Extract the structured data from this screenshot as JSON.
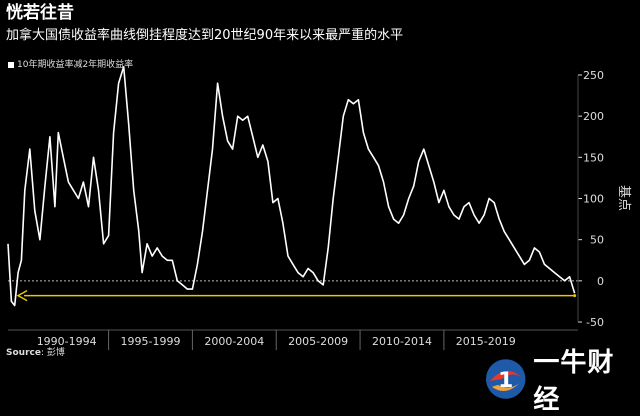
{
  "title": "恍若往昔",
  "subtitle": "加拿大国债收益率曲线倒挂程度达到20世纪90年来以来最严重的水平",
  "source_label": "Source",
  "source_value": ": 彭博",
  "watermark_text": "一牛财经",
  "colors": {
    "background": "#000000",
    "line": "#ffffff",
    "arrow": "#e8c800",
    "zero_line": "#bbbbbb",
    "axis_text": "#dddddd"
  },
  "chart_data": {
    "type": "line",
    "title": "恍若往昔",
    "ylabel": "基点",
    "ylim": [
      -50,
      250
    ],
    "yticks": [
      -50,
      0,
      50,
      100,
      150,
      200,
      250
    ],
    "xlim": [
      1989.0,
      2023.0
    ],
    "xtick_labels": [
      "1990-1994",
      "1995-1999",
      "2000-2004",
      "2005-2009",
      "2010-2014",
      "2015-2019"
    ],
    "xtick_centers": [
      1992.5,
      1997.5,
      2002.5,
      2007.5,
      2012.5,
      2017.5
    ],
    "xtick_dividers": [
      1995.0,
      2000.0,
      2005.0,
      2010.0,
      2015.0
    ],
    "series": [
      {
        "name": "10年期收益率减2年期收益率",
        "x": [
          1989.0,
          1989.2,
          1989.4,
          1989.6,
          1989.8,
          1990.0,
          1990.3,
          1990.6,
          1990.9,
          1991.2,
          1991.5,
          1991.8,
          1992.0,
          1992.3,
          1992.6,
          1992.9,
          1993.2,
          1993.5,
          1993.8,
          1994.1,
          1994.4,
          1994.7,
          1995.0,
          1995.3,
          1995.6,
          1995.9,
          1996.2,
          1996.5,
          1996.8,
          1997.0,
          1997.3,
          1997.6,
          1997.9,
          1998.2,
          1998.5,
          1998.8,
          1999.1,
          1999.4,
          1999.7,
          2000.0,
          2000.3,
          2000.6,
          2000.9,
          2001.2,
          2001.5,
          2001.8,
          2002.1,
          2002.4,
          2002.7,
          2003.0,
          2003.3,
          2003.6,
          2003.9,
          2004.2,
          2004.5,
          2004.8,
          2005.1,
          2005.4,
          2005.7,
          2006.0,
          2006.3,
          2006.6,
          2006.9,
          2007.2,
          2007.5,
          2007.8,
          2008.1,
          2008.4,
          2008.7,
          2009.0,
          2009.3,
          2009.6,
          2009.9,
          2010.2,
          2010.5,
          2010.8,
          2011.1,
          2011.4,
          2011.7,
          2012.0,
          2012.3,
          2012.6,
          2012.9,
          2013.2,
          2013.5,
          2013.8,
          2014.1,
          2014.4,
          2014.7,
          2015.0,
          2015.3,
          2015.6,
          2015.9,
          2016.2,
          2016.5,
          2016.8,
          2017.1,
          2017.4,
          2017.7,
          2018.0,
          2018.3,
          2018.6,
          2018.9,
          2019.2,
          2019.5,
          2019.8,
          2020.1,
          2020.4,
          2020.7,
          2021.0,
          2021.3,
          2021.6,
          2021.9,
          2022.2,
          2022.5,
          2022.8
        ],
        "y": [
          45,
          -25,
          -30,
          10,
          25,
          110,
          160,
          85,
          50,
          115,
          175,
          90,
          180,
          150,
          120,
          110,
          100,
          120,
          90,
          150,
          110,
          45,
          55,
          180,
          240,
          260,
          190,
          110,
          60,
          10,
          45,
          30,
          40,
          30,
          25,
          25,
          0,
          -5,
          -10,
          -10,
          20,
          60,
          110,
          160,
          240,
          200,
          170,
          160,
          200,
          195,
          200,
          175,
          150,
          165,
          145,
          95,
          100,
          70,
          30,
          20,
          10,
          5,
          15,
          10,
          0,
          -5,
          40,
          100,
          150,
          200,
          220,
          215,
          220,
          180,
          160,
          150,
          140,
          120,
          90,
          75,
          70,
          80,
          100,
          115,
          145,
          160,
          140,
          120,
          95,
          110,
          90,
          80,
          75,
          90,
          95,
          80,
          70,
          80,
          100,
          95,
          75,
          60,
          50,
          40,
          30,
          20,
          25,
          40,
          35,
          20,
          15,
          10,
          5,
          0,
          5,
          -15
        ]
      }
    ],
    "annotation": {
      "type": "arrow",
      "y": -18,
      "x_from": 2022.8,
      "x_to": 1989.6
    },
    "zero_line": true,
    "legend_position": "top-left"
  }
}
